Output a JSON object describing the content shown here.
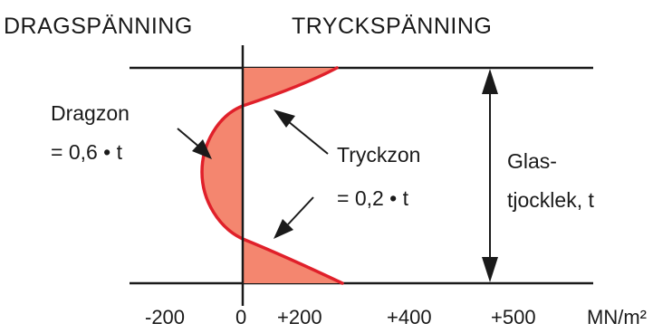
{
  "header": {
    "left_title": "DRAGSPÄNNING",
    "right_title": "TRYCKSPÄNNING"
  },
  "labels": {
    "dragzon_name": "Dragzon",
    "dragzon_formula": "= 0,6 • t",
    "tryckzon_name": "Tryckzon",
    "tryckzon_formula": "= 0,2 • t",
    "thickness_line1": "Glas-",
    "thickness_line2": "tjocklek, t"
  },
  "axis": {
    "ticks": [
      "-200",
      "0",
      "+200",
      "+400",
      "+500"
    ],
    "unit": "MN/m²"
  },
  "colors": {
    "fill": "#f4866f",
    "curve": "#e0202a",
    "line": "#1a1a1a"
  }
}
